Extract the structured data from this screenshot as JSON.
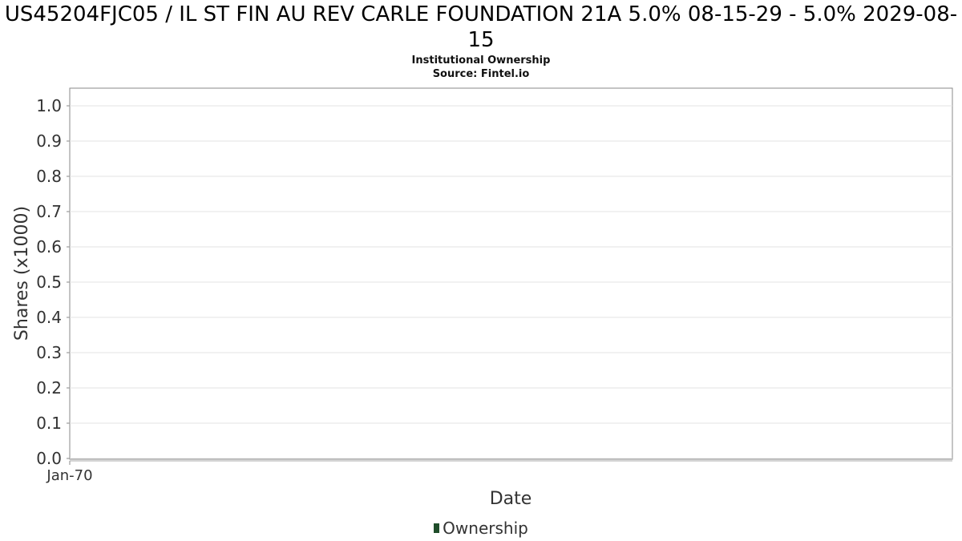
{
  "chart_data": {
    "type": "line",
    "title": "US45204FJC05 / IL ST FIN AU REV CARLE FOUNDATION 21A 5.0% 08-15-29 - 5.0% 2029-08-15",
    "subtitle": "Institutional Ownership",
    "source": "Source: Fintel.io",
    "xlabel": "Date",
    "ylabel": "Shares (x1000)",
    "x_ticks": [
      "Jan-70"
    ],
    "y_ticks": [
      "0.0",
      "0.1",
      "0.2",
      "0.3",
      "0.4",
      "0.5",
      "0.6",
      "0.7",
      "0.8",
      "0.9",
      "1.0"
    ],
    "ylim": [
      0,
      1.0
    ],
    "grid": true,
    "legend_position": "bottom",
    "series": [
      {
        "name": "Ownership",
        "color": "#1f4d2a",
        "x": [],
        "values": []
      }
    ]
  }
}
